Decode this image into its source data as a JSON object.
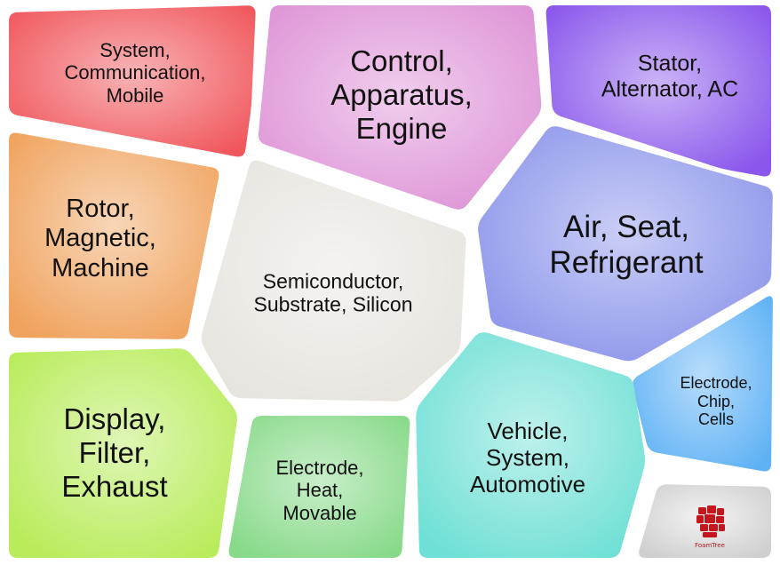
{
  "cells": [
    {
      "id": "system",
      "lines": [
        "System,",
        "Communication,",
        "Mobile"
      ],
      "color": "#f0575c"
    },
    {
      "id": "control",
      "lines": [
        "Control,",
        "Apparatus,",
        "Engine"
      ],
      "color": "#de93d6"
    },
    {
      "id": "stator",
      "lines": [
        "Stator,",
        "Alternator, AC"
      ],
      "color": "#8a56ec"
    },
    {
      "id": "rotor",
      "lines": [
        "Rotor,",
        "Magnetic,",
        "Machine"
      ],
      "color": "#f0a35e"
    },
    {
      "id": "semiconductor",
      "lines": [
        "Semiconductor,",
        "Substrate, Silicon"
      ],
      "color": "#e6e4dd"
    },
    {
      "id": "air",
      "lines": [
        "Air, Seat,",
        "Refrigerant"
      ],
      "color": "#8a93ea"
    },
    {
      "id": "electrode_chip",
      "lines": [
        "Electrode,",
        "Chip,",
        "Cells"
      ],
      "color": "#5fb2f5"
    },
    {
      "id": "display",
      "lines": [
        "Display,",
        "Filter,",
        "Exhaust"
      ],
      "color": "#b8ec5a"
    },
    {
      "id": "electrode_heat",
      "lines": [
        "Electrode,",
        "Heat,",
        "Movable"
      ],
      "color": "#88da8a"
    },
    {
      "id": "vehicle",
      "lines": [
        "Vehicle,",
        "System,",
        "Automotive"
      ],
      "color": "#6fe0d5"
    },
    {
      "id": "foamtree",
      "lines": [],
      "color": "#cfcfcf"
    }
  ],
  "logo": {
    "text": "FoamTree",
    "color": "#c4161c"
  }
}
